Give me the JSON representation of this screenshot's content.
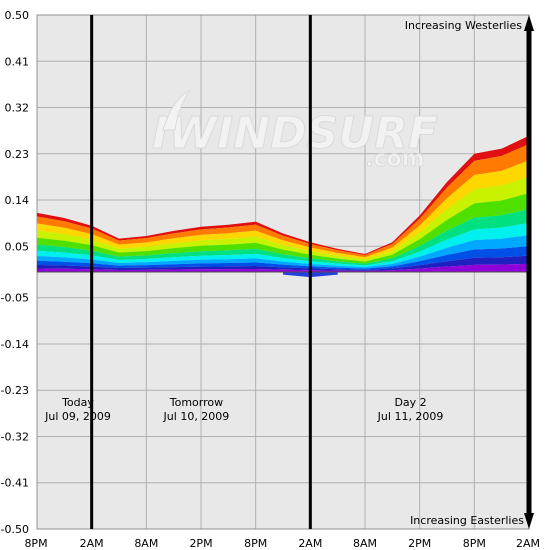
{
  "chart_data": {
    "type": "area",
    "title": "",
    "xlabel": "",
    "ylabel": "",
    "ylim": [
      -0.5,
      0.5
    ],
    "y_ticks": [
      "0.50",
      "0.41",
      "0.32",
      "0.23",
      "0.14",
      "0.05",
      "-0.05",
      "-0.14",
      "-0.23",
      "-0.32",
      "-0.41",
      "-0.50"
    ],
    "x_ticks": [
      "8PM",
      "2AM",
      "8AM",
      "2PM",
      "8PM",
      "2AM",
      "8AM",
      "2PM",
      "8PM",
      "2AM"
    ],
    "x_tick_hours": [
      0,
      6,
      12,
      18,
      24,
      30,
      36,
      42,
      48,
      54
    ],
    "day_separator_hours": [
      6,
      30
    ],
    "grid": true,
    "x_hours": [
      0,
      3,
      6,
      9,
      12,
      15,
      18,
      21,
      24,
      27,
      30,
      33,
      36,
      39,
      42,
      45,
      48,
      51,
      54
    ],
    "envelope_top": [
      0.115,
      0.105,
      0.09,
      0.065,
      0.07,
      0.08,
      0.088,
      0.092,
      0.098,
      0.075,
      0.058,
      0.045,
      0.035,
      0.058,
      0.11,
      0.175,
      0.23,
      0.24,
      0.265
    ],
    "band_fractions": [
      0.94,
      0.82,
      0.7,
      0.58,
      0.46,
      0.36,
      0.27,
      0.19,
      0.12,
      0.06
    ],
    "band_colors": [
      "#e01010",
      "#ff7a00",
      "#ffd700",
      "#c8f200",
      "#50e000",
      "#00e080",
      "#00f0f0",
      "#00a8ff",
      "#0050e8",
      "#2020c0",
      "#9000d8"
    ],
    "baseline_dip": [
      {
        "x": 27,
        "y": -0.005
      },
      {
        "x": 30,
        "y": -0.01
      },
      {
        "x": 33,
        "y": -0.005
      }
    ]
  },
  "annotations": {
    "westerlies": "Increasing Westerlies",
    "easterlies": "Increasing Easterlies",
    "days": [
      {
        "name": "Today",
        "date": "Jul 09, 2009",
        "center_hour": 4.5
      },
      {
        "name": "Tomorrow",
        "date": "Jul 10, 2009",
        "center_hour": 17.5
      },
      {
        "name": "Day 2",
        "date": "Jul 11, 2009",
        "center_hour": 41
      }
    ]
  },
  "watermark": {
    "main": "IWINDSURF",
    "sub": ".com"
  }
}
